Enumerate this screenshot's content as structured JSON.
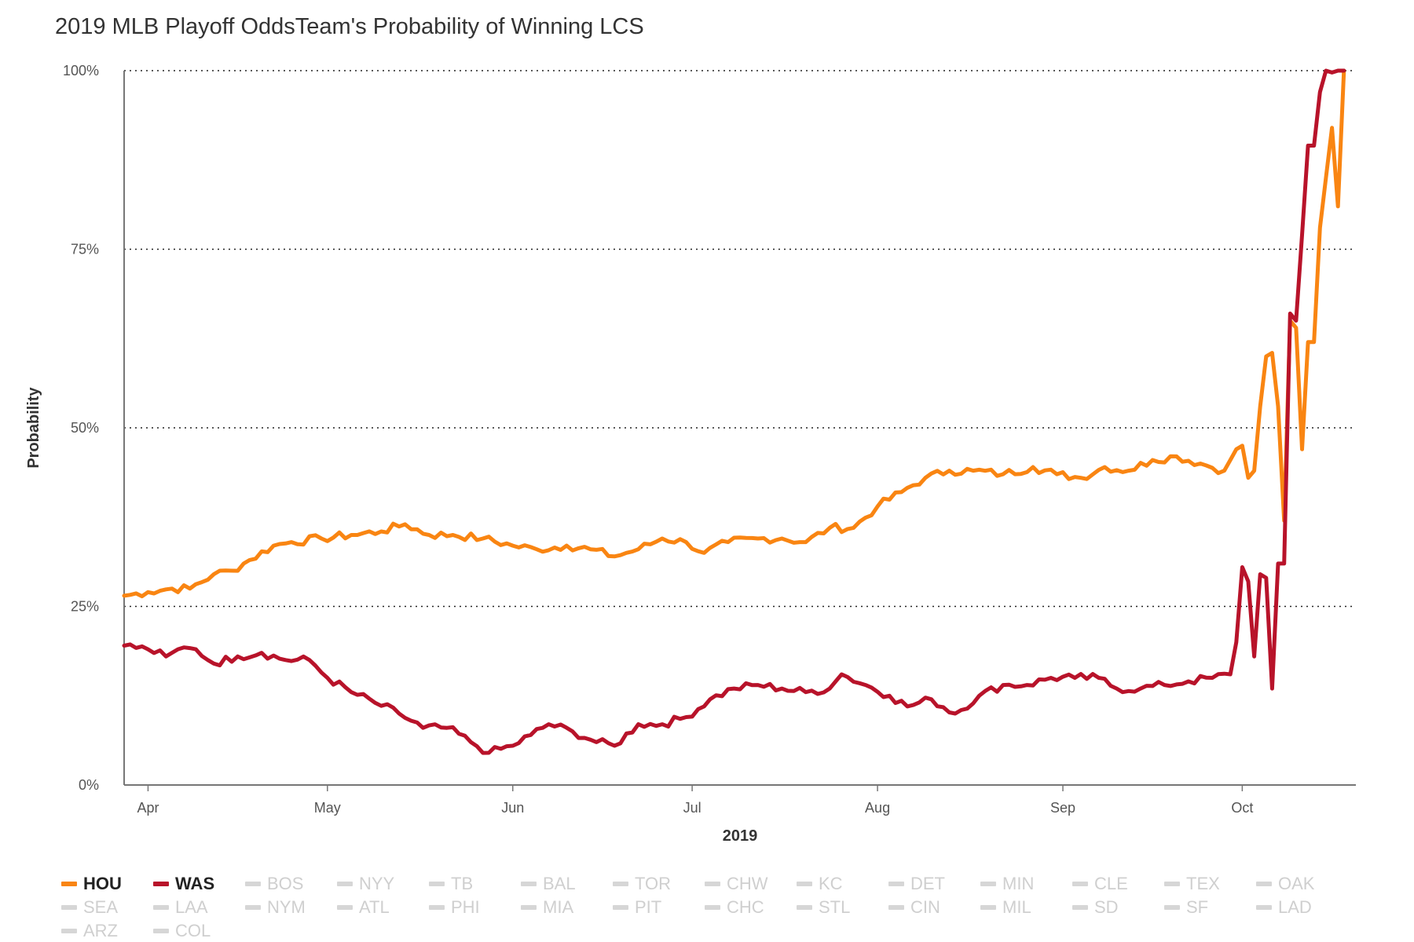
{
  "title": "2019 MLB Playoff OddsTeam's Probability of Winning LCS",
  "chart_data": {
    "type": "line",
    "title": "2019 MLB Playoff OddsTeam's Probability of Winning LCS",
    "xlabel": "2019",
    "ylabel": "Probability",
    "x_range": [
      "2019-03-28",
      "2019-10-20"
    ],
    "ylim": [
      0,
      1
    ],
    "y_ticks": [
      0,
      0.25,
      0.5,
      0.75,
      1
    ],
    "y_tick_labels": [
      "0%",
      "25%",
      "50%",
      "75%",
      "100%"
    ],
    "x_ticks": [
      "2019-04-01",
      "2019-05-01",
      "2019-06-01",
      "2019-07-01",
      "2019-08-01",
      "2019-09-01",
      "2019-10-01"
    ],
    "x_tick_labels": [
      "Apr",
      "May",
      "Jun",
      "Jul",
      "Aug",
      "Sep",
      "Oct"
    ],
    "grid": "horizontal dotted",
    "legend_position": "bottom",
    "series": [
      {
        "name": "HOU",
        "color": "#f98512",
        "points": [
          [
            "2019-03-28",
            0.265
          ],
          [
            "2019-04-01",
            0.27
          ],
          [
            "2019-04-05",
            0.275
          ],
          [
            "2019-04-08",
            0.275
          ],
          [
            "2019-04-12",
            0.295
          ],
          [
            "2019-04-15",
            0.3
          ],
          [
            "2019-04-18",
            0.315
          ],
          [
            "2019-04-22",
            0.335
          ],
          [
            "2019-04-25",
            0.34
          ],
          [
            "2019-04-30",
            0.345
          ],
          [
            "2019-05-05",
            0.35
          ],
          [
            "2019-05-10",
            0.355
          ],
          [
            "2019-05-14",
            0.365
          ],
          [
            "2019-05-18",
            0.35
          ],
          [
            "2019-05-22",
            0.35
          ],
          [
            "2019-05-27",
            0.345
          ],
          [
            "2019-06-01",
            0.335
          ],
          [
            "2019-06-05",
            0.33
          ],
          [
            "2019-06-10",
            0.335
          ],
          [
            "2019-06-14",
            0.33
          ],
          [
            "2019-06-18",
            0.32
          ],
          [
            "2019-06-22",
            0.33
          ],
          [
            "2019-06-26",
            0.345
          ],
          [
            "2019-06-30",
            0.34
          ],
          [
            "2019-07-03",
            0.325
          ],
          [
            "2019-07-07",
            0.34
          ],
          [
            "2019-07-12",
            0.345
          ],
          [
            "2019-07-16",
            0.345
          ],
          [
            "2019-07-20",
            0.34
          ],
          [
            "2019-07-24",
            0.36
          ],
          [
            "2019-07-28",
            0.36
          ],
          [
            "2019-08-01",
            0.39
          ],
          [
            "2019-08-05",
            0.41
          ],
          [
            "2019-08-09",
            0.43
          ],
          [
            "2019-08-13",
            0.44
          ],
          [
            "2019-08-17",
            0.44
          ],
          [
            "2019-08-22",
            0.435
          ],
          [
            "2019-08-27",
            0.445
          ],
          [
            "2019-08-31",
            0.435
          ],
          [
            "2019-09-04",
            0.43
          ],
          [
            "2019-09-08",
            0.445
          ],
          [
            "2019-09-12",
            0.44
          ],
          [
            "2019-09-16",
            0.455
          ],
          [
            "2019-09-20",
            0.46
          ],
          [
            "2019-09-24",
            0.45
          ],
          [
            "2019-09-28",
            0.44
          ],
          [
            "2019-09-30",
            0.47
          ],
          [
            "2019-10-01",
            0.475
          ],
          [
            "2019-10-02",
            0.43
          ],
          [
            "2019-10-03",
            0.44
          ],
          [
            "2019-10-04",
            0.53
          ],
          [
            "2019-10-05",
            0.6
          ],
          [
            "2019-10-06",
            0.605
          ],
          [
            "2019-10-07",
            0.53
          ],
          [
            "2019-10-08",
            0.37
          ],
          [
            "2019-10-09",
            0.65
          ],
          [
            "2019-10-10",
            0.64
          ],
          [
            "2019-10-11",
            0.47
          ],
          [
            "2019-10-12",
            0.62
          ],
          [
            "2019-10-13",
            0.62
          ],
          [
            "2019-10-14",
            0.78
          ],
          [
            "2019-10-16",
            0.92
          ],
          [
            "2019-10-17",
            0.81
          ],
          [
            "2019-10-18",
            1.0
          ]
        ]
      },
      {
        "name": "WAS",
        "color": "#b8132a",
        "points": [
          [
            "2019-03-28",
            0.195
          ],
          [
            "2019-04-01",
            0.19
          ],
          [
            "2019-04-04",
            0.18
          ],
          [
            "2019-04-06",
            0.19
          ],
          [
            "2019-04-09",
            0.19
          ],
          [
            "2019-04-12",
            0.17
          ],
          [
            "2019-04-16",
            0.18
          ],
          [
            "2019-04-20",
            0.185
          ],
          [
            "2019-04-24",
            0.175
          ],
          [
            "2019-04-28",
            0.175
          ],
          [
            "2019-05-01",
            0.15
          ],
          [
            "2019-05-05",
            0.13
          ],
          [
            "2019-05-09",
            0.115
          ],
          [
            "2019-05-13",
            0.1
          ],
          [
            "2019-05-17",
            0.08
          ],
          [
            "2019-05-21",
            0.08
          ],
          [
            "2019-05-25",
            0.06
          ],
          [
            "2019-05-28",
            0.045
          ],
          [
            "2019-06-01",
            0.055
          ],
          [
            "2019-06-04",
            0.07
          ],
          [
            "2019-06-07",
            0.085
          ],
          [
            "2019-06-11",
            0.075
          ],
          [
            "2019-06-15",
            0.06
          ],
          [
            "2019-06-18",
            0.055
          ],
          [
            "2019-06-22",
            0.085
          ],
          [
            "2019-06-26",
            0.085
          ],
          [
            "2019-06-30",
            0.095
          ],
          [
            "2019-07-04",
            0.12
          ],
          [
            "2019-07-08",
            0.135
          ],
          [
            "2019-07-12",
            0.14
          ],
          [
            "2019-07-16",
            0.135
          ],
          [
            "2019-07-20",
            0.13
          ],
          [
            "2019-07-24",
            0.135
          ],
          [
            "2019-07-26",
            0.155
          ],
          [
            "2019-07-30",
            0.14
          ],
          [
            "2019-08-03",
            0.125
          ],
          [
            "2019-08-06",
            0.11
          ],
          [
            "2019-08-10",
            0.12
          ],
          [
            "2019-08-14",
            0.1
          ],
          [
            "2019-08-18",
            0.125
          ],
          [
            "2019-08-22",
            0.14
          ],
          [
            "2019-08-26",
            0.14
          ],
          [
            "2019-08-30",
            0.15
          ],
          [
            "2019-09-03",
            0.15
          ],
          [
            "2019-09-07",
            0.15
          ],
          [
            "2019-09-10",
            0.135
          ],
          [
            "2019-09-14",
            0.135
          ],
          [
            "2019-09-18",
            0.14
          ],
          [
            "2019-09-22",
            0.145
          ],
          [
            "2019-09-26",
            0.15
          ],
          [
            "2019-09-29",
            0.155
          ],
          [
            "2019-09-30",
            0.2
          ],
          [
            "2019-10-01",
            0.305
          ],
          [
            "2019-10-02",
            0.285
          ],
          [
            "2019-10-03",
            0.18
          ],
          [
            "2019-10-04",
            0.295
          ],
          [
            "2019-10-05",
            0.29
          ],
          [
            "2019-10-06",
            0.135
          ],
          [
            "2019-10-07",
            0.31
          ],
          [
            "2019-10-08",
            0.31
          ],
          [
            "2019-10-09",
            0.66
          ],
          [
            "2019-10-10",
            0.65
          ],
          [
            "2019-10-11",
            0.77
          ],
          [
            "2019-10-12",
            0.895
          ],
          [
            "2019-10-13",
            0.895
          ],
          [
            "2019-10-14",
            0.97
          ],
          [
            "2019-10-15",
            1.0
          ],
          [
            "2019-10-18",
            1.0
          ]
        ]
      }
    ]
  },
  "legend": {
    "active": [
      {
        "label": "HOU",
        "color": "#f98512"
      },
      {
        "label": "WAS",
        "color": "#b8132a"
      }
    ],
    "inactive_color": "#d6d6d6",
    "inactive": [
      "BOS",
      "NYY",
      "TB",
      "BAL",
      "TOR",
      "CHW",
      "KC",
      "DET",
      "MIN",
      "CLE",
      "TEX",
      "OAK",
      "SEA",
      "LAA",
      "NYM",
      "ATL",
      "PHI",
      "MIA",
      "PIT",
      "CHC",
      "STL",
      "CIN",
      "MIL",
      "SD",
      "SF",
      "LAD",
      "ARZ",
      "COL"
    ]
  }
}
